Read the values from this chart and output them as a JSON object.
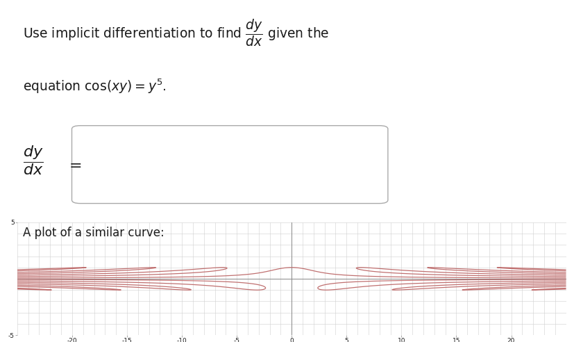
{
  "background_color": "#ffffff",
  "curve_color": "#c07070",
  "grid_color": "#d0d0d0",
  "axis_color": "#888888",
  "text_color": "#1a1a1a",
  "box_edgecolor": "#aaaaaa",
  "xlim": [
    -25,
    25
  ],
  "ylim": [
    -5,
    5
  ],
  "xtick_step": 5,
  "ytick_vals": [
    -5,
    5
  ],
  "figure_width": 8.28,
  "figure_height": 4.92,
  "dpi": 100
}
